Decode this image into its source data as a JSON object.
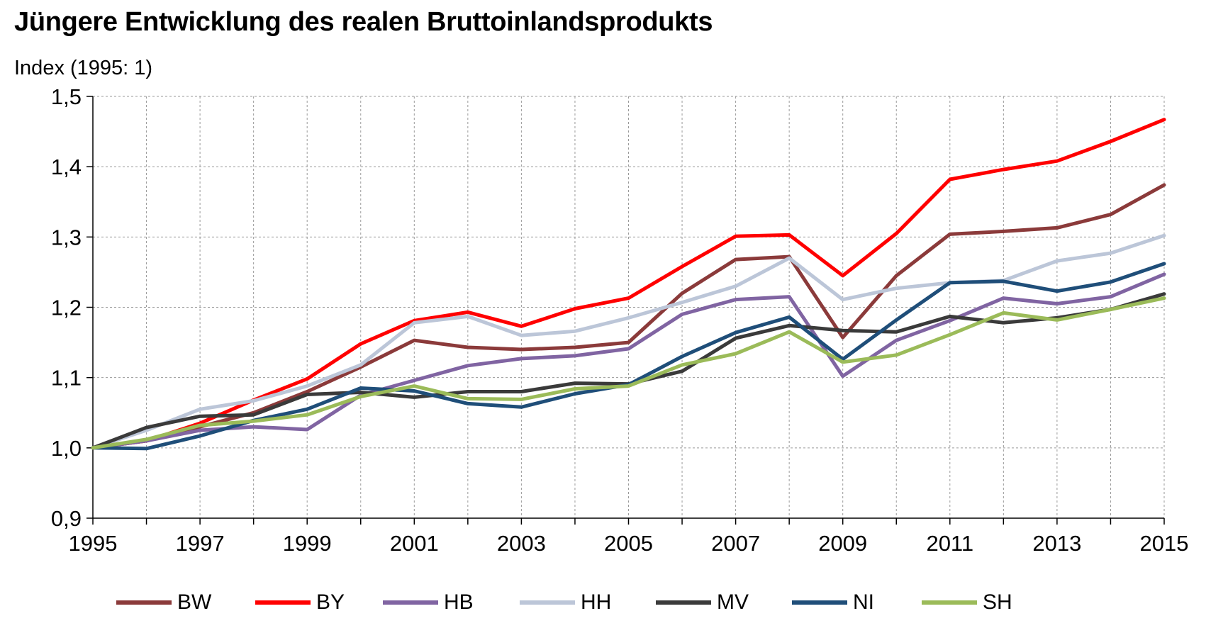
{
  "chart_data": {
    "type": "line",
    "title": "Jüngere Entwicklung des realen Bruttoinlandsprodukts",
    "ylabel": "Index (1995: 1)",
    "xlabel": "",
    "x": [
      1995,
      1996,
      1997,
      1998,
      1999,
      2000,
      2001,
      2002,
      2003,
      2004,
      2005,
      2006,
      2007,
      2008,
      2009,
      2010,
      2011,
      2012,
      2013,
      2014,
      2015
    ],
    "x_tick_labels": [
      "1995",
      "1997",
      "1999",
      "2001",
      "2003",
      "2005",
      "2007",
      "2009",
      "2011",
      "2013",
      "2015"
    ],
    "y_tick_labels": [
      "0,9",
      "1,0",
      "1,1",
      "1,2",
      "1,3",
      "1,4",
      "1,5"
    ],
    "y_ticks": [
      0.9,
      1.0,
      1.1,
      1.2,
      1.3,
      1.4,
      1.5
    ],
    "ylim": [
      0.9,
      1.5
    ],
    "xlim": [
      1995,
      2015
    ],
    "grid": true,
    "legend_position": "bottom",
    "series": [
      {
        "name": "BW",
        "color": "#8B3A3A",
        "values": [
          1.0,
          1.01,
          1.03,
          1.05,
          1.08,
          1.115,
          1.153,
          1.143,
          1.14,
          1.143,
          1.15,
          1.22,
          1.268,
          1.272,
          1.157,
          1.245,
          1.304,
          1.308,
          1.313,
          1.332,
          1.374
        ]
      },
      {
        "name": "BY",
        "color": "#FF0000",
        "values": [
          1.0,
          1.01,
          1.035,
          1.068,
          1.098,
          1.148,
          1.181,
          1.193,
          1.173,
          1.198,
          1.213,
          1.258,
          1.301,
          1.303,
          1.245,
          1.305,
          1.382,
          1.396,
          1.408,
          1.436,
          1.467
        ]
      },
      {
        "name": "HB",
        "color": "#8064A2",
        "values": [
          1.0,
          1.01,
          1.025,
          1.03,
          1.026,
          1.075,
          1.096,
          1.117,
          1.127,
          1.131,
          1.141,
          1.19,
          1.211,
          1.215,
          1.102,
          1.153,
          1.181,
          1.213,
          1.205,
          1.215,
          1.247
        ]
      },
      {
        "name": "HH",
        "color": "#BCC6D8",
        "values": [
          1.0,
          1.025,
          1.055,
          1.067,
          1.088,
          1.118,
          1.178,
          1.187,
          1.16,
          1.166,
          1.185,
          1.207,
          1.23,
          1.27,
          1.211,
          1.227,
          1.235,
          1.238,
          1.266,
          1.277,
          1.302
        ]
      },
      {
        "name": "MV",
        "color": "#3A3A3A",
        "values": [
          1.0,
          1.029,
          1.045,
          1.047,
          1.076,
          1.079,
          1.072,
          1.08,
          1.08,
          1.092,
          1.091,
          1.109,
          1.156,
          1.174,
          1.167,
          1.165,
          1.187,
          1.178,
          1.185,
          1.197,
          1.219
        ]
      },
      {
        "name": "NI",
        "color": "#1F4E79",
        "values": [
          1.0,
          0.999,
          1.017,
          1.039,
          1.055,
          1.085,
          1.081,
          1.063,
          1.058,
          1.077,
          1.09,
          1.13,
          1.164,
          1.186,
          1.126,
          1.182,
          1.235,
          1.237,
          1.223,
          1.236,
          1.262
        ]
      },
      {
        "name": "SH",
        "color": "#9BBB59",
        "values": [
          1.0,
          1.012,
          1.032,
          1.038,
          1.047,
          1.073,
          1.088,
          1.07,
          1.069,
          1.084,
          1.088,
          1.118,
          1.134,
          1.165,
          1.122,
          1.132,
          1.161,
          1.192,
          1.182,
          1.197,
          1.213
        ]
      }
    ]
  }
}
